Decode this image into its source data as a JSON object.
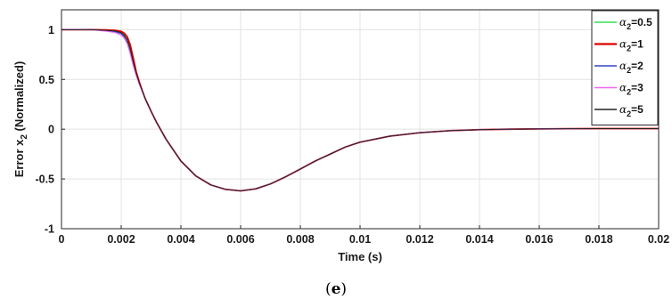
{
  "chart_data": {
    "type": "line",
    "title": "",
    "xlabel": "Time (s)",
    "ylabel_main": "Error x",
    "ylabel_sub": "2",
    "ylabel_tail": " (Normalized)",
    "xlim": [
      0,
      0.02
    ],
    "ylim": [
      -1,
      1.2
    ],
    "xticks": [
      0,
      0.002,
      0.004,
      0.006,
      0.008,
      0.01,
      0.012,
      0.014,
      0.016,
      0.018,
      0.02
    ],
    "xtick_labels": [
      "0",
      "0.002",
      "0.004",
      "0.006",
      "0.008",
      "0.01",
      "0.012",
      "0.014",
      "0.016",
      "0.018",
      "0.02"
    ],
    "yticks": [
      -1,
      -0.5,
      0,
      0.5,
      1
    ],
    "ytick_labels": [
      "-1",
      "-0.5",
      "0",
      "0.5",
      "1"
    ],
    "grid": true,
    "legend_position": "top-right",
    "x": [
      0,
      0.0005,
      0.001,
      0.0015,
      0.0018,
      0.002,
      0.0021,
      0.0022,
      0.0023,
      0.0024,
      0.0025,
      0.0026,
      0.0027,
      0.0028,
      0.003,
      0.0032,
      0.0035,
      0.004,
      0.0045,
      0.005,
      0.0055,
      0.006,
      0.0065,
      0.007,
      0.0075,
      0.008,
      0.0085,
      0.009,
      0.0095,
      0.01,
      0.011,
      0.012,
      0.013,
      0.014,
      0.015,
      0.016,
      0.017,
      0.018,
      0.019,
      0.02
    ],
    "series": [
      {
        "name_greek": "α",
        "name_sub": "2",
        "name_rest": "=0.5",
        "color": "#33dd55",
        "width": 1.1,
        "values": [
          1.0,
          1.0,
          1.0,
          0.995,
          0.99,
          0.975,
          0.95,
          0.9,
          0.8,
          0.67,
          0.56,
          0.47,
          0.39,
          0.31,
          0.18,
          0.06,
          -0.1,
          -0.32,
          -0.47,
          -0.56,
          -0.605,
          -0.62,
          -0.6,
          -0.55,
          -0.48,
          -0.4,
          -0.32,
          -0.25,
          -0.18,
          -0.13,
          -0.07,
          -0.035,
          -0.015,
          -0.005,
          0.0,
          0.003,
          0.005,
          0.006,
          0.006,
          0.006
        ]
      },
      {
        "name_greek": "α",
        "name_sub": "2",
        "name_rest": "=1",
        "color": "#dd0000",
        "width": 1.8,
        "values": [
          1.0,
          1.0,
          1.0,
          0.997,
          0.993,
          0.983,
          0.965,
          0.93,
          0.85,
          0.72,
          0.58,
          0.48,
          0.39,
          0.31,
          0.18,
          0.06,
          -0.1,
          -0.32,
          -0.47,
          -0.56,
          -0.605,
          -0.62,
          -0.6,
          -0.55,
          -0.48,
          -0.4,
          -0.32,
          -0.25,
          -0.18,
          -0.13,
          -0.07,
          -0.035,
          -0.015,
          -0.005,
          0.0,
          0.003,
          0.005,
          0.006,
          0.006,
          0.006
        ]
      },
      {
        "name_greek": "α",
        "name_sub": "2",
        "name_rest": "=2",
        "color": "#3344cc",
        "width": 1.1,
        "values": [
          1.0,
          1.0,
          1.0,
          0.99,
          0.98,
          0.96,
          0.93,
          0.87,
          0.77,
          0.65,
          0.55,
          0.46,
          0.38,
          0.31,
          0.18,
          0.06,
          -0.1,
          -0.32,
          -0.47,
          -0.56,
          -0.605,
          -0.62,
          -0.6,
          -0.55,
          -0.48,
          -0.4,
          -0.32,
          -0.25,
          -0.18,
          -0.13,
          -0.07,
          -0.035,
          -0.015,
          -0.005,
          0.0,
          0.003,
          0.005,
          0.006,
          0.006,
          0.006
        ]
      },
      {
        "name_greek": "α",
        "name_sub": "2",
        "name_rest": "=3",
        "color": "#ee66ee",
        "width": 1.1,
        "values": [
          1.0,
          1.0,
          0.998,
          0.985,
          0.97,
          0.945,
          0.915,
          0.86,
          0.76,
          0.64,
          0.54,
          0.455,
          0.38,
          0.31,
          0.18,
          0.06,
          -0.1,
          -0.32,
          -0.47,
          -0.56,
          -0.605,
          -0.62,
          -0.6,
          -0.55,
          -0.48,
          -0.4,
          -0.32,
          -0.25,
          -0.18,
          -0.13,
          -0.07,
          -0.035,
          -0.015,
          -0.005,
          0.0,
          0.003,
          0.005,
          0.006,
          0.006,
          0.006
        ]
      },
      {
        "name_greek": "α",
        "name_sub": "2",
        "name_rest": "=5",
        "color": "#222222",
        "width": 1.0,
        "values": [
          1.0,
          1.0,
          1.0,
          0.993,
          0.987,
          0.97,
          0.945,
          0.9,
          0.81,
          0.68,
          0.565,
          0.47,
          0.39,
          0.31,
          0.18,
          0.06,
          -0.1,
          -0.32,
          -0.47,
          -0.56,
          -0.605,
          -0.62,
          -0.6,
          -0.55,
          -0.48,
          -0.4,
          -0.32,
          -0.25,
          -0.18,
          -0.13,
          -0.07,
          -0.035,
          -0.015,
          -0.005,
          0.0,
          0.003,
          0.005,
          0.006,
          0.006,
          0.006
        ]
      }
    ]
  },
  "caption": {
    "open": "(",
    "letter": "e",
    "close": ")"
  }
}
